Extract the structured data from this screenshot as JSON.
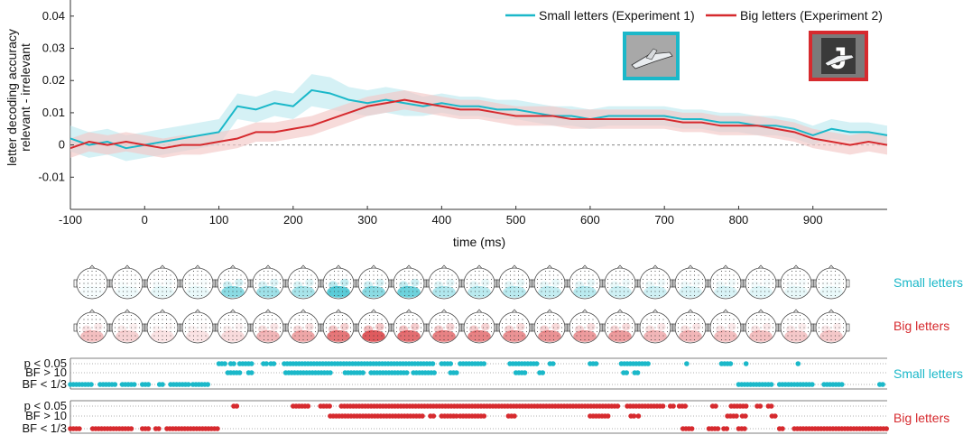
{
  "chart_data": {
    "type": "line",
    "title": "",
    "xlabel": "time (ms)",
    "ylabel": [
      "letter decoding accuracy",
      "relevant - irrelevant"
    ],
    "xlim": [
      -100,
      1000
    ],
    "ylim": [
      -0.02,
      0.045
    ],
    "xticks": [
      -100,
      0,
      100,
      200,
      300,
      400,
      500,
      600,
      700,
      800,
      900
    ],
    "yticks": [
      -0.01,
      0,
      0.01,
      0.02,
      0.03,
      0.04
    ],
    "ytick_labels": [
      "-0.01",
      "0",
      "0.01",
      "0.02",
      "0.03",
      "0.04"
    ],
    "zero_line": "dashed",
    "legend_position": "top-right",
    "colors": {
      "small": "#1bb8c9",
      "big": "#d62a2e",
      "small_band": "#bfe9ef",
      "big_band": "#f2c7c6",
      "zero_line": "#888888"
    },
    "x": [
      -100,
      -75,
      -50,
      -25,
      0,
      25,
      50,
      75,
      100,
      125,
      150,
      175,
      200,
      225,
      250,
      275,
      300,
      325,
      350,
      375,
      400,
      425,
      450,
      475,
      500,
      525,
      550,
      575,
      600,
      625,
      650,
      675,
      700,
      725,
      750,
      775,
      800,
      825,
      850,
      875,
      900,
      925,
      950,
      975,
      1000
    ],
    "series": [
      {
        "name": "Small letters (Experiment 1)",
        "color": "#1bb8c9",
        "values": [
          0.002,
          0.0,
          0.001,
          -0.001,
          0.0,
          0.001,
          0.002,
          0.003,
          0.004,
          0.012,
          0.011,
          0.013,
          0.012,
          0.017,
          0.016,
          0.014,
          0.013,
          0.014,
          0.013,
          0.012,
          0.013,
          0.012,
          0.012,
          0.011,
          0.011,
          0.01,
          0.009,
          0.009,
          0.008,
          0.009,
          0.009,
          0.009,
          0.009,
          0.008,
          0.008,
          0.007,
          0.007,
          0.006,
          0.006,
          0.005,
          0.003,
          0.005,
          0.004,
          0.004,
          0.003
        ],
        "sem": [
          0.004,
          0.004,
          0.004,
          0.004,
          0.004,
          0.004,
          0.004,
          0.004,
          0.004,
          0.004,
          0.004,
          0.004,
          0.004,
          0.005,
          0.005,
          0.004,
          0.004,
          0.004,
          0.004,
          0.003,
          0.003,
          0.003,
          0.003,
          0.003,
          0.003,
          0.003,
          0.003,
          0.003,
          0.003,
          0.003,
          0.003,
          0.003,
          0.003,
          0.003,
          0.003,
          0.003,
          0.003,
          0.003,
          0.003,
          0.003,
          0.003,
          0.003,
          0.003,
          0.003,
          0.003
        ]
      },
      {
        "name": "Big letters (Experiment 2)",
        "color": "#d62a2e",
        "values": [
          -0.001,
          0.001,
          0.0,
          0.001,
          0.0,
          -0.001,
          0.0,
          0.0,
          0.001,
          0.002,
          0.004,
          0.004,
          0.005,
          0.006,
          0.008,
          0.01,
          0.012,
          0.013,
          0.014,
          0.013,
          0.012,
          0.011,
          0.011,
          0.01,
          0.009,
          0.009,
          0.009,
          0.008,
          0.008,
          0.008,
          0.008,
          0.008,
          0.008,
          0.007,
          0.007,
          0.006,
          0.006,
          0.006,
          0.005,
          0.004,
          0.002,
          0.001,
          0.0,
          0.001,
          0.0
        ],
        "sem": [
          0.003,
          0.003,
          0.003,
          0.003,
          0.003,
          0.003,
          0.003,
          0.003,
          0.003,
          0.003,
          0.003,
          0.003,
          0.003,
          0.003,
          0.003,
          0.003,
          0.003,
          0.003,
          0.003,
          0.003,
          0.003,
          0.003,
          0.003,
          0.003,
          0.003,
          0.003,
          0.003,
          0.003,
          0.003,
          0.003,
          0.003,
          0.003,
          0.003,
          0.003,
          0.003,
          0.003,
          0.003,
          0.003,
          0.003,
          0.003,
          0.003,
          0.003,
          0.003,
          0.003,
          0.003
        ]
      }
    ],
    "legend": [
      "Small letters (Experiment 1)",
      "Big letters (Experiment 2)"
    ],
    "stimulus_images": [
      {
        "description": "airplane",
        "frame_color": "#1bb8c9"
      },
      {
        "description": "letter J with airplane",
        "frame_color": "#d62a2e"
      }
    ],
    "topography_rows": [
      {
        "label": "Small letters",
        "color": "#1bb8c9",
        "intensity": [
          0.05,
          0.08,
          0.12,
          0.1,
          0.6,
          0.5,
          0.45,
          0.85,
          0.6,
          0.75,
          0.4,
          0.35,
          0.35,
          0.3,
          0.35,
          0.25,
          0.25,
          0.2,
          0.2,
          0.15,
          0.12,
          0.1
        ]
      },
      {
        "label": "Big letters",
        "color": "#d62a2e",
        "intensity": [
          0.35,
          0.25,
          0.15,
          0.15,
          0.2,
          0.4,
          0.5,
          0.75,
          0.9,
          0.8,
          0.7,
          0.7,
          0.6,
          0.6,
          0.55,
          0.55,
          0.4,
          0.4,
          0.35,
          0.35,
          0.3,
          0.3
        ]
      }
    ],
    "significance": [
      {
        "group": "Small letters",
        "color": "#1bb8c9",
        "rows": [
          {
            "label": "p < 0.05",
            "segments": [
              [
                100,
                110
              ],
              [
                116,
                120
              ],
              [
                128,
                145
              ],
              [
                160,
                165
              ],
              [
                170,
                175
              ],
              [
                188,
                390
              ],
              [
                400,
                415
              ],
              [
                425,
                460
              ],
              [
                492,
                530
              ],
              [
                546,
                552
              ],
              [
                600,
                610
              ],
              [
                642,
                680
              ],
              [
                730,
                732
              ],
              [
                777,
                790
              ],
              [
                810,
                812
              ],
              [
                880,
                882
              ]
            ]
          },
          {
            "label": "BF > 10",
            "segments": [
              [
                112,
                130
              ],
              [
                140,
                147
              ],
              [
                190,
                250
              ],
              [
                270,
                295
              ],
              [
                305,
                355
              ],
              [
                362,
                390
              ],
              [
                412,
                420
              ],
              [
                500,
                515
              ],
              [
                532,
                537
              ],
              [
                645,
                650
              ],
              [
                660,
                665
              ]
            ]
          },
          {
            "label": "BF < 1/3",
            "segments": [
              [
                -100,
                -70
              ],
              [
                -60,
                -40
              ],
              [
                -30,
                -12
              ],
              [
                -3,
                5
              ],
              [
                20,
                27
              ],
              [
                35,
                60
              ],
              [
                65,
                85
              ],
              [
                800,
                845
              ],
              [
                855,
                900
              ],
              [
                915,
                940
              ],
              [
                990,
                995
              ]
            ]
          }
        ]
      },
      {
        "group": "Big letters",
        "color": "#d62a2e",
        "rows": [
          {
            "label": "p < 0.05",
            "segments": [
              [
                120,
                125
              ],
              [
                200,
                220
              ],
              [
                237,
                250
              ],
              [
                265,
                640
              ],
              [
                650,
                700
              ],
              [
                708,
                712
              ],
              [
                720,
                730
              ],
              [
                765,
                770
              ],
              [
                790,
                812
              ],
              [
                825,
                830
              ],
              [
                840,
                845
              ]
            ]
          },
          {
            "label": "BF > 10",
            "segments": [
              [
                250,
                375
              ],
              [
                385,
                390
              ],
              [
                400,
                420
              ],
              [
                425,
                460
              ],
              [
                490,
                500
              ],
              [
                600,
                625
              ],
              [
                655,
                660
              ],
              [
                665,
                667
              ],
              [
                785,
                800
              ],
              [
                805,
                812
              ],
              [
                845,
                850
              ]
            ]
          },
          {
            "label": "BF < 1/3",
            "segments": [
              [
                -100,
                -85
              ],
              [
                -70,
                -15
              ],
              [
                -3,
                5
              ],
              [
                15,
                20
              ],
              [
                30,
                100
              ],
              [
                725,
                740
              ],
              [
                760,
                775
              ],
              [
                780,
                785
              ],
              [
                800,
                810
              ],
              [
                855,
                860
              ],
              [
                875,
                1000
              ]
            ]
          }
        ]
      }
    ]
  }
}
